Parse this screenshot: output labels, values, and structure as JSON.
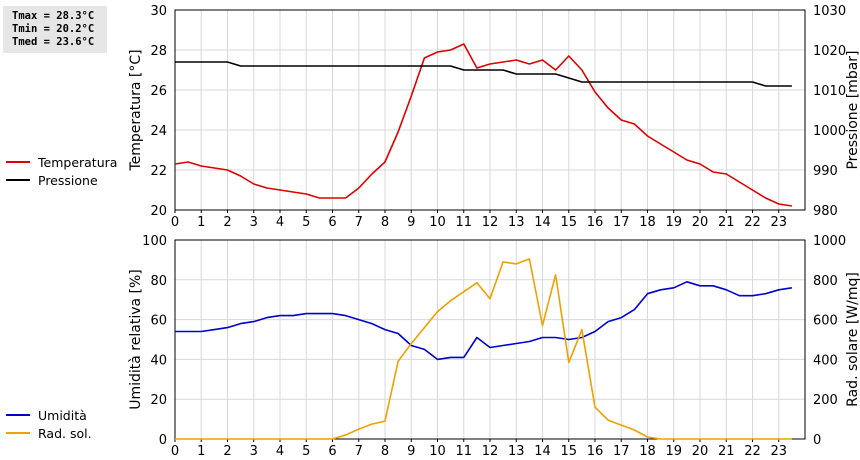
{
  "stats": {
    "tmax": "Tmax = 28.3°C",
    "tmin": "Tmin = 20.2°C",
    "tmed": "Tmed = 23.6°C"
  },
  "chart_data": [
    {
      "type": "line",
      "x_ticks": [
        "0",
        "1",
        "2",
        "3",
        "4",
        "5",
        "6",
        "7",
        "8",
        "9",
        "10",
        "11",
        "12",
        "13",
        "14",
        "15",
        "16",
        "17",
        "18",
        "19",
        "20",
        "21",
        "22",
        "23"
      ],
      "xlim": [
        0,
        24
      ],
      "ylabel_left": "Temperatura [°C]",
      "ylabel_right": "Pressione [mbar]",
      "ylim_left": [
        20,
        30
      ],
      "ylim_right": [
        980,
        1030
      ],
      "yticks_left": [
        "20",
        "22",
        "24",
        "26",
        "28",
        "30"
      ],
      "yticks_right": [
        "980",
        "990",
        "1000",
        "1010",
        "1020",
        "1030"
      ],
      "grid": true,
      "legend_position": "left",
      "series": [
        {
          "name": "Temperatura",
          "axis": "left",
          "color": "#dd0000",
          "x": [
            0,
            0.5,
            1,
            1.5,
            2,
            2.5,
            3,
            3.5,
            4,
            4.5,
            5,
            5.5,
            6,
            6.5,
            7,
            7.5,
            8,
            8.5,
            9,
            9.5,
            10,
            10.5,
            11,
            11.5,
            12,
            12.5,
            13,
            13.5,
            14,
            14.5,
            15,
            15.5,
            16,
            16.5,
            17,
            17.5,
            18,
            18.5,
            19,
            19.5,
            20,
            20.5,
            21,
            21.5,
            22,
            22.5,
            23,
            23.5
          ],
          "values": [
            22.3,
            22.4,
            22.2,
            22.1,
            22.0,
            21.7,
            21.3,
            21.1,
            21.0,
            20.9,
            20.8,
            20.6,
            20.6,
            20.6,
            21.1,
            21.8,
            22.4,
            23.9,
            25.7,
            27.6,
            27.9,
            28.0,
            28.3,
            27.1,
            27.3,
            27.4,
            27.5,
            27.3,
            27.5,
            27.0,
            27.7,
            27.0,
            25.9,
            25.1,
            24.5,
            24.3,
            23.7,
            23.3,
            22.9,
            22.5,
            22.3,
            21.9,
            21.8,
            21.4,
            21.0,
            20.6,
            20.3,
            20.2
          ]
        },
        {
          "name": "Pressione",
          "axis": "right",
          "color": "#000000",
          "x": [
            0,
            0.5,
            1,
            1.5,
            2,
            2.5,
            3,
            3.5,
            4,
            4.5,
            5,
            5.5,
            6,
            6.5,
            7,
            7.5,
            8,
            8.5,
            9,
            9.5,
            10,
            10.5,
            11,
            11.5,
            12,
            12.5,
            13,
            13.5,
            14,
            14.5,
            15,
            15.5,
            16,
            16.5,
            17,
            17.5,
            18,
            18.5,
            19,
            19.5,
            20,
            20.5,
            21,
            21.5,
            22,
            22.5,
            23,
            23.5
          ],
          "values": [
            1017,
            1017,
            1017,
            1017,
            1017,
            1016,
            1016,
            1016,
            1016,
            1016,
            1016,
            1016,
            1016,
            1016,
            1016,
            1016,
            1016,
            1016,
            1016,
            1016,
            1016,
            1016,
            1015,
            1015,
            1015,
            1015,
            1014,
            1014,
            1014,
            1014,
            1013,
            1012,
            1012,
            1012,
            1012,
            1012,
            1012,
            1012,
            1012,
            1012,
            1012,
            1012,
            1012,
            1012,
            1012,
            1011,
            1011,
            1011
          ]
        }
      ]
    },
    {
      "type": "line",
      "x_ticks": [
        "0",
        "1",
        "2",
        "3",
        "4",
        "5",
        "6",
        "7",
        "8",
        "9",
        "10",
        "11",
        "12",
        "13",
        "14",
        "15",
        "16",
        "17",
        "18",
        "19",
        "20",
        "21",
        "22",
        "23"
      ],
      "xlim": [
        0,
        24
      ],
      "ylabel_left": "Umidità relativa [%]",
      "ylabel_right": "Rad. solare [W/mq]",
      "ylim_left": [
        0,
        100
      ],
      "ylim_right": [
        0,
        1000
      ],
      "yticks_left": [
        "0",
        "20",
        "40",
        "60",
        "80",
        "100"
      ],
      "yticks_right": [
        "0",
        "200",
        "400",
        "600",
        "800",
        "1000"
      ],
      "grid": true,
      "legend_position": "left",
      "series": [
        {
          "name": "Umidità",
          "axis": "left",
          "color": "#0000cc",
          "x": [
            0,
            0.5,
            1,
            1.5,
            2,
            2.5,
            3,
            3.5,
            4,
            4.5,
            5,
            5.5,
            6,
            6.5,
            7,
            7.5,
            8,
            8.5,
            9,
            9.5,
            10,
            10.5,
            11,
            11.5,
            12,
            12.5,
            13,
            13.5,
            14,
            14.5,
            15,
            15.5,
            16,
            16.5,
            17,
            17.5,
            18,
            18.5,
            19,
            19.5,
            20,
            20.5,
            21,
            21.5,
            22,
            22.5,
            23,
            23.5
          ],
          "values": [
            54,
            54,
            54,
            55,
            56,
            58,
            59,
            61,
            62,
            62,
            63,
            63,
            63,
            62,
            60,
            58,
            55,
            53,
            47,
            45,
            40,
            41,
            41,
            51,
            46,
            47,
            48,
            49,
            51,
            51,
            50,
            51,
            54,
            59,
            61,
            65,
            73,
            75,
            76,
            79,
            77,
            77,
            75,
            72,
            72,
            73,
            75,
            76
          ]
        },
        {
          "name": "Rad. sol.",
          "axis": "right",
          "color": "#f0a000",
          "x": [
            0,
            0.5,
            1,
            1.5,
            2,
            2.5,
            3,
            3.5,
            4,
            4.5,
            5,
            5.5,
            6,
            6.5,
            7,
            7.5,
            8,
            8.5,
            9,
            9.5,
            10,
            10.5,
            11,
            11.5,
            12,
            12.5,
            13,
            13.5,
            14,
            14.5,
            15,
            15.5,
            16,
            16.5,
            17,
            17.5,
            18,
            18.5,
            19,
            19.5,
            20,
            20.5,
            21,
            21.5,
            22,
            22.5,
            23,
            23.5
          ],
          "values": [
            0,
            0,
            0,
            0,
            0,
            0,
            0,
            0,
            0,
            0,
            0,
            0,
            0,
            20,
            50,
            75,
            90,
            390,
            480,
            560,
            640,
            695,
            740,
            785,
            705,
            890,
            880,
            905,
            570,
            825,
            385,
            550,
            160,
            95,
            70,
            45,
            10,
            0,
            0,
            0,
            0,
            0,
            0,
            0,
            0,
            0,
            0,
            0
          ]
        }
      ]
    }
  ]
}
